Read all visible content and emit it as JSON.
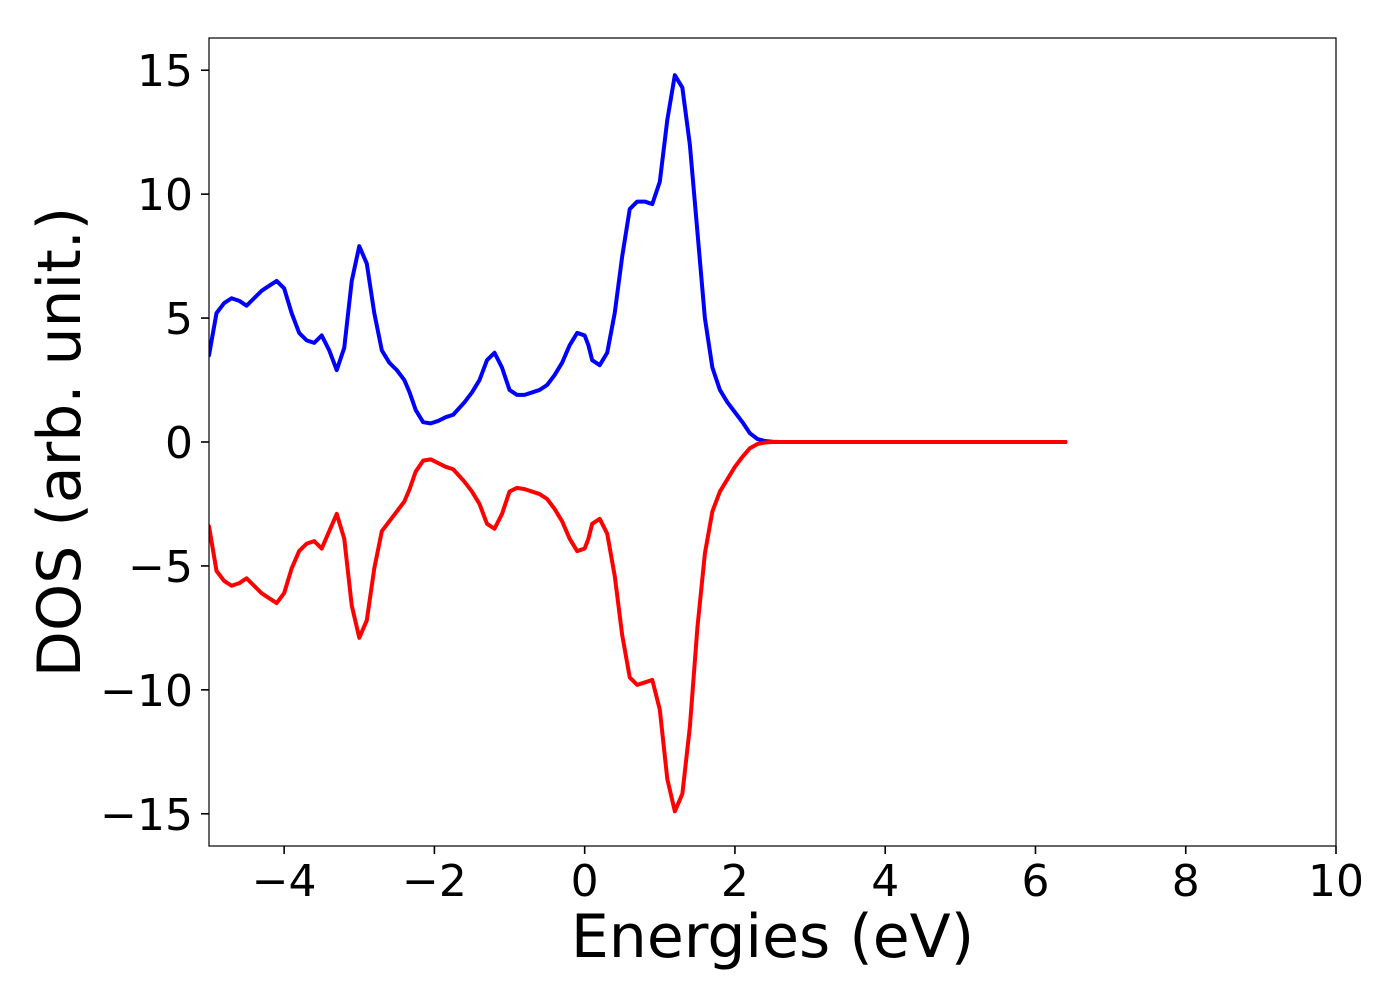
{
  "chart_data": {
    "type": "line",
    "title": "",
    "xlabel": "Energies (eV)",
    "ylabel": "DOS (arb. unit.)",
    "xlim": [
      -5,
      10
    ],
    "ylim": [
      -16.3,
      16.3
    ],
    "xticks": [
      -4,
      -2,
      0,
      2,
      4,
      6,
      8,
      10
    ],
    "yticks": [
      -15,
      -10,
      -5,
      0,
      5,
      10,
      15
    ],
    "xtick_labels": [
      "−4",
      "−2",
      "0",
      "2",
      "4",
      "6",
      "8",
      "10"
    ],
    "ytick_labels": [
      "−15",
      "−10",
      "−5",
      "0",
      "5",
      "10",
      "15"
    ],
    "grid": false,
    "series": [
      {
        "color": "#0000ff",
        "x": [
          -5.0,
          -4.9,
          -4.8,
          -4.7,
          -4.6,
          -4.5,
          -4.4,
          -4.3,
          -4.2,
          -4.1,
          -4.0,
          -3.9,
          -3.8,
          -3.7,
          -3.6,
          -3.5,
          -3.4,
          -3.3,
          -3.2,
          -3.1,
          -3.0,
          -2.9,
          -2.8,
          -2.7,
          -2.6,
          -2.5,
          -2.4,
          -2.33,
          -2.25,
          -2.15,
          -2.05,
          -1.95,
          -1.85,
          -1.75,
          -1.6,
          -1.5,
          -1.4,
          -1.3,
          -1.2,
          -1.1,
          -1.0,
          -0.9,
          -0.8,
          -0.7,
          -0.6,
          -0.5,
          -0.4,
          -0.3,
          -0.2,
          -0.1,
          0.0,
          0.05,
          0.1,
          0.2,
          0.3,
          0.4,
          0.5,
          0.6,
          0.7,
          0.8,
          0.9,
          1.0,
          1.1,
          1.2,
          1.3,
          1.4,
          1.5,
          1.6,
          1.7,
          1.8,
          1.9,
          2.0,
          2.1,
          2.2,
          2.3,
          2.4,
          2.5,
          2.6,
          2.7,
          2.75,
          2.8,
          2.9,
          3.0,
          3.1,
          3.2,
          3.25,
          3.3,
          3.4,
          3.5,
          3.6,
          3.7,
          3.8,
          3.9,
          4.0,
          4.1,
          4.2,
          4.3,
          4.4,
          4.5,
          4.6,
          4.7,
          4.8,
          5.0,
          5.5,
          6.0,
          6.4
        ],
        "y": [
          3.5,
          5.2,
          5.6,
          5.8,
          5.7,
          5.5,
          5.8,
          6.1,
          6.3,
          6.5,
          6.2,
          5.2,
          4.4,
          4.1,
          4.0,
          4.3,
          3.7,
          2.9,
          3.8,
          6.5,
          7.9,
          7.2,
          5.2,
          3.7,
          3.2,
          2.9,
          2.5,
          2.0,
          1.3,
          0.8,
          0.75,
          0.85,
          1.0,
          1.1,
          1.6,
          2.0,
          2.5,
          3.3,
          3.6,
          3.0,
          2.1,
          1.9,
          1.9,
          2.0,
          2.1,
          2.3,
          2.7,
          3.2,
          3.9,
          4.4,
          4.3,
          3.9,
          3.3,
          3.1,
          3.6,
          5.2,
          7.5,
          9.4,
          9.7,
          9.7,
          9.6,
          10.5,
          13.0,
          14.8,
          14.3,
          12.0,
          8.5,
          5.0,
          3.0,
          2.1,
          1.6,
          1.2,
          0.8,
          0.35,
          0.12,
          0.04,
          0.01,
          0.0,
          0.0,
          0.0,
          0.0,
          0.0,
          0.0,
          0.0,
          0.0,
          0.0,
          0.0,
          0.0,
          0.0,
          0.0,
          0.0,
          0.0,
          0.0,
          0.0,
          0.0,
          0.0,
          0.0,
          0.0,
          0.0,
          0.0,
          0.0,
          0.0,
          0.0,
          0.0,
          0.0,
          0.0
        ]
      },
      {
        "color": "#ff0000",
        "x": [
          -5.0,
          -4.9,
          -4.8,
          -4.7,
          -4.6,
          -4.5,
          -4.4,
          -4.3,
          -4.2,
          -4.1,
          -4.0,
          -3.9,
          -3.8,
          -3.7,
          -3.6,
          -3.5,
          -3.4,
          -3.3,
          -3.2,
          -3.1,
          -3.0,
          -2.9,
          -2.8,
          -2.7,
          -2.6,
          -2.5,
          -2.4,
          -2.33,
          -2.25,
          -2.15,
          -2.05,
          -1.95,
          -1.85,
          -1.75,
          -1.6,
          -1.5,
          -1.4,
          -1.3,
          -1.2,
          -1.1,
          -1.0,
          -0.9,
          -0.8,
          -0.7,
          -0.6,
          -0.5,
          -0.4,
          -0.3,
          -0.2,
          -0.1,
          0.0,
          0.05,
          0.1,
          0.2,
          0.3,
          0.4,
          0.5,
          0.6,
          0.7,
          0.8,
          0.9,
          1.0,
          1.1,
          1.2,
          1.3,
          1.4,
          1.5,
          1.6,
          1.7,
          1.8,
          1.9,
          2.0,
          2.1,
          2.2,
          2.3,
          2.4,
          2.5,
          2.6,
          2.7,
          2.75,
          2.8,
          2.9,
          3.0,
          3.1,
          3.2,
          3.25,
          3.3,
          3.4,
          3.5,
          3.6,
          3.7,
          3.8,
          3.9,
          4.0,
          4.1,
          4.2,
          4.3,
          4.4,
          4.5,
          4.6,
          4.7,
          4.8,
          5.0,
          5.5,
          6.0,
          6.4
        ],
        "y": [
          -3.4,
          -5.2,
          -5.6,
          -5.8,
          -5.7,
          -5.5,
          -5.8,
          -6.1,
          -6.3,
          -6.5,
          -6.1,
          -5.1,
          -4.4,
          -4.1,
          -4.0,
          -4.3,
          -3.6,
          -2.9,
          -3.9,
          -6.6,
          -7.9,
          -7.2,
          -5.1,
          -3.6,
          -3.2,
          -2.8,
          -2.4,
          -1.9,
          -1.2,
          -0.75,
          -0.7,
          -0.85,
          -1.0,
          -1.1,
          -1.6,
          -2.0,
          -2.5,
          -3.3,
          -3.5,
          -2.9,
          -2.0,
          -1.85,
          -1.9,
          -2.0,
          -2.1,
          -2.3,
          -2.7,
          -3.2,
          -3.9,
          -4.4,
          -4.3,
          -3.9,
          -3.3,
          -3.1,
          -3.7,
          -5.4,
          -7.8,
          -9.5,
          -9.8,
          -9.7,
          -9.6,
          -10.8,
          -13.6,
          -14.9,
          -14.2,
          -11.5,
          -7.5,
          -4.5,
          -2.8,
          -2.0,
          -1.5,
          -1.0,
          -0.6,
          -0.25,
          -0.08,
          -0.02,
          0.0,
          0.0,
          0.0,
          0.0,
          0.0,
          0.0,
          0.0,
          0.0,
          0.0,
          0.0,
          0.0,
          0.0,
          0.0,
          0.0,
          0.0,
          0.0,
          0.0,
          0.0,
          0.0,
          0.0,
          0.0,
          0.0,
          0.0,
          0.0,
          0.0,
          0.0,
          0.0,
          0.0,
          0.0,
          0.0
        ]
      }
    ]
  }
}
